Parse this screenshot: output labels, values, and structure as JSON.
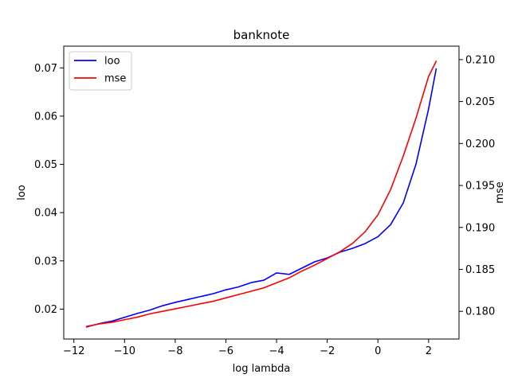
{
  "chart_data": {
    "type": "line",
    "title": "banknote",
    "xlabel": "log lambda",
    "ylabel_left": "loo",
    "ylabel_right": "mse",
    "xlim": [
      -12.4,
      3.2
    ],
    "ylim_left": [
      0.0138,
      0.0745
    ],
    "ylim_right": [
      0.1767,
      0.2116
    ],
    "x_ticks": [
      -12,
      -10,
      -8,
      -6,
      -4,
      -2,
      0,
      2
    ],
    "x_tick_labels": [
      "−12",
      "−10",
      "−8",
      "−6",
      "−4",
      "−2",
      "0",
      "2"
    ],
    "y_ticks_left": [
      0.02,
      0.03,
      0.04,
      0.05,
      0.06,
      0.07
    ],
    "y_tick_labels_left": [
      "0.02",
      "0.03",
      "0.04",
      "0.05",
      "0.06",
      "0.07"
    ],
    "y_ticks_right": [
      0.18,
      0.185,
      0.19,
      0.195,
      0.2,
      0.205,
      0.21
    ],
    "y_tick_labels_right": [
      "0.180",
      "0.185",
      "0.190",
      "0.195",
      "0.200",
      "0.205",
      "0.210"
    ],
    "grid": false,
    "legend_position": "top-left",
    "series": [
      {
        "name": "loo",
        "axis": "left",
        "color": "#0000ff",
        "points": [
          [
            -11.5,
            0.0163
          ],
          [
            -11.0,
            0.017
          ],
          [
            -10.5,
            0.0175
          ],
          [
            -10.0,
            0.0183
          ],
          [
            -9.5,
            0.0191
          ],
          [
            -9.0,
            0.0198
          ],
          [
            -8.5,
            0.0207
          ],
          [
            -8.0,
            0.0214
          ],
          [
            -7.5,
            0.022
          ],
          [
            -7.0,
            0.0226
          ],
          [
            -6.5,
            0.0232
          ],
          [
            -6.0,
            0.024
          ],
          [
            -5.5,
            0.0246
          ],
          [
            -5.0,
            0.0255
          ],
          [
            -4.5,
            0.026
          ],
          [
            -4.0,
            0.0275
          ],
          [
            -3.5,
            0.0272
          ],
          [
            -3.0,
            0.0285
          ],
          [
            -2.5,
            0.0298
          ],
          [
            -2.0,
            0.0306
          ],
          [
            -1.5,
            0.0318
          ],
          [
            -1.0,
            0.0326
          ],
          [
            -0.5,
            0.0336
          ],
          [
            0.0,
            0.035
          ],
          [
            0.5,
            0.0375
          ],
          [
            1.0,
            0.042
          ],
          [
            1.5,
            0.05
          ],
          [
            2.0,
            0.0615
          ],
          [
            2.3,
            0.0698
          ]
        ]
      },
      {
        "name": "mse",
        "axis": "right",
        "color": "#ff0000",
        "points": [
          [
            -11.5,
            0.1782
          ],
          [
            -11.0,
            0.1785
          ],
          [
            -10.5,
            0.1787
          ],
          [
            -10.0,
            0.179
          ],
          [
            -9.5,
            0.1793
          ],
          [
            -9.0,
            0.1797
          ],
          [
            -8.5,
            0.18
          ],
          [
            -8.0,
            0.1803
          ],
          [
            -7.5,
            0.1806
          ],
          [
            -7.0,
            0.1809
          ],
          [
            -6.5,
            0.1812
          ],
          [
            -6.0,
            0.1816
          ],
          [
            -5.5,
            0.182
          ],
          [
            -5.0,
            0.1824
          ],
          [
            -4.5,
            0.1828
          ],
          [
            -4.0,
            0.1834
          ],
          [
            -3.5,
            0.184
          ],
          [
            -3.0,
            0.1848
          ],
          [
            -2.5,
            0.1855
          ],
          [
            -2.0,
            0.1863
          ],
          [
            -1.5,
            0.1871
          ],
          [
            -1.0,
            0.1881
          ],
          [
            -0.5,
            0.1895
          ],
          [
            0.0,
            0.1915
          ],
          [
            0.5,
            0.1945
          ],
          [
            1.0,
            0.1985
          ],
          [
            1.5,
            0.203
          ],
          [
            2.0,
            0.208
          ],
          [
            2.3,
            0.2098
          ]
        ]
      }
    ]
  }
}
